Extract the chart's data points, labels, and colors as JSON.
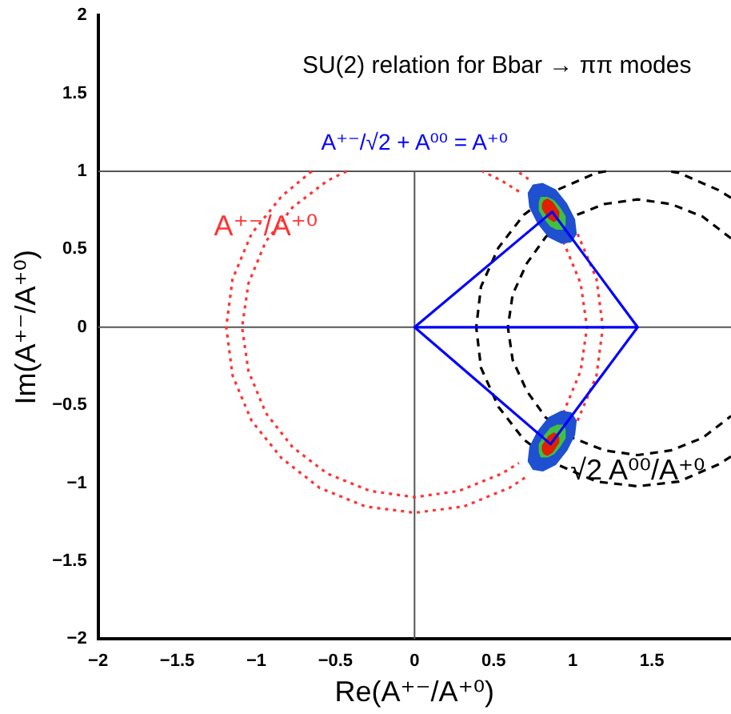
{
  "chart_data": {
    "type": "line",
    "title": "SU(2) relation for Bbar → ππ modes",
    "subtitle": "A⁺⁻/√2 + A⁰⁰ = A⁺⁰",
    "xlabel": "Re(A⁺⁻/A⁺⁰)",
    "ylabel": "Im(A⁺⁻/A⁺⁰)",
    "xlim": [
      -2,
      2
    ],
    "xticks": [
      -2,
      -1.5,
      -1,
      -0.5,
      0,
      0.5,
      1,
      1.5
    ],
    "ylim": [
      -2,
      2
    ],
    "yticks": [
      -2,
      -1.5,
      -1,
      -0.5,
      0,
      0.5,
      1,
      1.5,
      2
    ],
    "grid": false,
    "legend": false,
    "marker": "none",
    "ref_lines": [
      {
        "axis": "x",
        "value": 0,
        "color": "#555555"
      },
      {
        "axis": "y",
        "value": 0,
        "color": "#555555"
      },
      {
        "axis": "y",
        "value": 1,
        "color": "#555555"
      }
    ],
    "annotations": [
      {
        "text": "A⁺⁻/A⁺⁰",
        "x": -0.94,
        "y": 0.55
      },
      {
        "text": "√2 A⁰⁰/A⁺⁰",
        "x": 1.41,
        "y": -1.02
      }
    ],
    "series": [
      {
        "type": "line",
        "line_style": "dotted",
        "color": "#ff3333",
        "x": [
          -0.43,
          -0.55,
          -0.77,
          -0.94,
          -1.05,
          -1.09,
          -1.05,
          -0.94,
          -0.77,
          -0.55,
          -0.28,
          0,
          0.28,
          0.55,
          0.66,
          0.77,
          0.94,
          1.05,
          1.09,
          1.05,
          0.94,
          0.77,
          0.66,
          0.55,
          0.43
        ],
        "values": [
          1,
          0.94,
          0.77,
          0.55,
          0.28,
          0,
          -0.28,
          -0.55,
          -0.77,
          -0.94,
          -1.05,
          -1.09,
          -1.05,
          -0.94,
          -0.87,
          null,
          -0.55,
          -0.28,
          0,
          0.28,
          0.55,
          null,
          0.87,
          0.94,
          1
        ]
      },
      {
        "type": "line",
        "line_style": "dotted",
        "color": "#ff3333",
        "x": [
          -0.65,
          -0.84,
          -1.03,
          -1.15,
          -1.19,
          -1.15,
          -1.03,
          -0.84,
          -0.6,
          -0.31,
          0,
          0.31,
          0.6,
          0.72,
          0.84,
          1.03,
          1.15,
          1.19,
          1.15,
          1.03,
          0.84,
          0.72,
          0.65
        ],
        "values": [
          1,
          0.84,
          0.6,
          0.31,
          0,
          -0.31,
          -0.6,
          -0.84,
          -1.03,
          -1.15,
          -1.19,
          -1.15,
          -1.03,
          -0.95,
          null,
          -0.6,
          -0.31,
          0,
          0.31,
          0.6,
          null,
          0.95,
          1
        ]
      },
      {
        "type": "line",
        "line_style": "dashed",
        "color": "#000000",
        "x": [
          2,
          1.82,
          1.62,
          1.41,
          1.2,
          1,
          0.83,
          0.71,
          0.62,
          0.59,
          0.62,
          0.71,
          0.83,
          1,
          1.2,
          1.41,
          1.62,
          1.82,
          2
        ],
        "values": [
          0.57,
          0.71,
          0.79,
          0.82,
          0.79,
          0.71,
          0.58,
          0.41,
          0.21,
          0,
          -0.21,
          -0.41,
          -0.58,
          -0.71,
          -0.79,
          -0.82,
          -0.79,
          -0.71,
          -0.57
        ]
      },
      {
        "type": "line",
        "line_style": "dashed",
        "color": "#000000",
        "x": [
          2,
          1.92,
          1.67,
          1.61,
          1.41,
          1.21,
          1.15,
          0.9,
          0.69,
          0.53,
          0.42,
          0.39,
          0.42,
          0.53,
          0.69,
          0.9,
          1.15,
          1.41,
          1.67,
          1.92,
          2
        ],
        "values": [
          0.83,
          0.88,
          0.99,
          1,
          null,
          1,
          0.99,
          0.88,
          0.72,
          0.51,
          0.26,
          0,
          -0.26,
          -0.51,
          -0.72,
          -0.88,
          -0.99,
          -1.02,
          -0.99,
          -0.88,
          -0.83
        ]
      },
      {
        "type": "area",
        "color": "#1e50d0",
        "x": [
          0.99,
          1.02,
          1.01,
          0.96,
          0.89,
          0.81,
          0.75,
          0.72,
          0.73,
          0.78,
          0.85,
          0.93,
          0.99
        ],
        "values": [
          0.55,
          0.6,
          0.69,
          0.79,
          0.88,
          0.92,
          0.91,
          0.86,
          0.77,
          0.67,
          0.58,
          0.54,
          0.55
        ]
      },
      {
        "type": "area",
        "color": "#40c040",
        "x": [
          0.94,
          0.95,
          0.95,
          0.92,
          0.88,
          0.84,
          0.8,
          0.79,
          0.79,
          0.82,
          0.86,
          0.9,
          0.94
        ],
        "values": [
          0.63,
          0.66,
          0.71,
          0.76,
          0.81,
          0.83,
          0.83,
          0.8,
          0.75,
          0.7,
          0.65,
          0.63,
          0.63
        ]
      },
      {
        "type": "area",
        "color": "#e02000",
        "x": [
          0.9,
          0.91,
          0.91,
          0.89,
          0.87,
          0.84,
          0.82,
          0.81,
          0.81,
          0.83,
          0.85,
          0.88,
          0.9
        ],
        "values": [
          0.69,
          0.71,
          0.74,
          0.77,
          0.8,
          0.82,
          0.81,
          0.79,
          0.76,
          0.73,
          0.7,
          0.68,
          0.69
        ]
      },
      {
        "type": "area",
        "color": "#1e50d0",
        "x": [
          0.99,
          1.02,
          1.01,
          0.96,
          0.89,
          0.81,
          0.75,
          0.72,
          0.73,
          0.78,
          0.85,
          0.93,
          0.99
        ],
        "values": [
          -0.55,
          -0.6,
          -0.69,
          -0.79,
          -0.88,
          -0.92,
          -0.91,
          -0.86,
          -0.77,
          -0.67,
          -0.58,
          -0.54,
          -0.55
        ]
      },
      {
        "type": "area",
        "color": "#40c040",
        "x": [
          0.94,
          0.95,
          0.95,
          0.92,
          0.88,
          0.84,
          0.8,
          0.79,
          0.79,
          0.82,
          0.86,
          0.9,
          0.94
        ],
        "values": [
          -0.63,
          -0.66,
          -0.71,
          -0.76,
          -0.81,
          -0.83,
          -0.83,
          -0.8,
          -0.75,
          -0.7,
          -0.65,
          -0.63,
          -0.63
        ]
      },
      {
        "type": "area",
        "color": "#e02000",
        "x": [
          0.9,
          0.91,
          0.91,
          0.89,
          0.87,
          0.84,
          0.82,
          0.81,
          0.81,
          0.83,
          0.85,
          0.88,
          0.9
        ],
        "values": [
          -0.69,
          -0.71,
          -0.74,
          -0.77,
          -0.8,
          -0.82,
          -0.81,
          -0.79,
          -0.76,
          -0.73,
          -0.7,
          -0.68,
          -0.69
        ]
      },
      {
        "type": "line",
        "line_style": "solid",
        "color": "#0000ff",
        "x": [
          0,
          0.87,
          1.41,
          0,
          0.86,
          1.41
        ],
        "values": [
          0,
          0.74,
          0,
          0,
          -0.75,
          0
        ]
      }
    ]
  }
}
